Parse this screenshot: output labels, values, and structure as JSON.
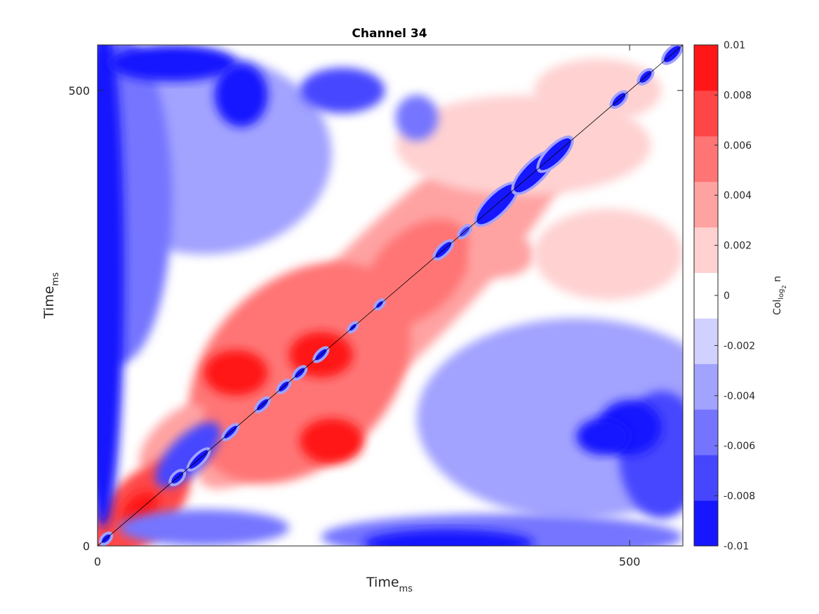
{
  "chart_data": {
    "type": "heatmap",
    "title": "Channel 34",
    "xlabel": {
      "main": "Time",
      "sub": "ms"
    },
    "ylabel": {
      "main": "Time",
      "sub": "ms"
    },
    "xlim": [
      0,
      550
    ],
    "ylim": [
      0,
      550
    ],
    "xticks": [
      {
        "value": 0,
        "label": "0"
      },
      {
        "value": 500,
        "label": "500"
      }
    ],
    "yticks": [
      {
        "value": 0,
        "label": "0"
      },
      {
        "value": 500,
        "label": "500"
      }
    ],
    "diagonal_line": true,
    "colorbar": {
      "label": {
        "main": "Col",
        "sub": "log",
        "subsub": "2",
        "tail": " n"
      },
      "clim": [
        -0.01,
        0.01
      ],
      "ticks": [
        {
          "value": 0.01,
          "label": "0.01"
        },
        {
          "value": 0.008,
          "label": "0.008"
        },
        {
          "value": 0.006,
          "label": "0.006"
        },
        {
          "value": 0.004,
          "label": "0.004"
        },
        {
          "value": 0.002,
          "label": "0.002"
        },
        {
          "value": 0,
          "label": "0"
        },
        {
          "value": -0.002,
          "label": "-0.002"
        },
        {
          "value": -0.004,
          "label": "-0.004"
        },
        {
          "value": -0.006,
          "label": "-0.006"
        },
        {
          "value": -0.008,
          "label": "-0.008"
        },
        {
          "value": -0.01,
          "label": "-0.01"
        }
      ],
      "colors": {
        "min": "#0000ff",
        "mid": "#ffffff",
        "max": "#ff0000"
      },
      "levels": 11
    },
    "regions": [
      {
        "x": 275,
        "y": 275,
        "rx": 250,
        "ry": 70,
        "rot": 45,
        "value": 0.003
      },
      {
        "x": 190,
        "y": 190,
        "rx": 120,
        "ry": 100,
        "rot": 45,
        "value": 0.0055
      },
      {
        "x": 130,
        "y": 190,
        "rx": 30,
        "ry": 25,
        "rot": 0,
        "value": 0.0095
      },
      {
        "x": 220,
        "y": 115,
        "rx": 30,
        "ry": 25,
        "rot": 0,
        "value": 0.0095
      },
      {
        "x": 210,
        "y": 210,
        "rx": 30,
        "ry": 25,
        "rot": 0,
        "value": 0.009
      },
      {
        "x": 70,
        "y": 120,
        "rx": 40,
        "ry": 20,
        "rot": 45,
        "value": 0.003
      },
      {
        "x": 300,
        "y": 300,
        "rx": 60,
        "ry": 45,
        "rot": 45,
        "value": 0.006
      },
      {
        "x": 380,
        "y": 320,
        "rx": 30,
        "ry": 25,
        "rot": 0,
        "value": 0.004
      },
      {
        "x": 40,
        "y": 40,
        "rx": 60,
        "ry": 35,
        "rot": 45,
        "value": 0.0065
      },
      {
        "x": 40,
        "y": 40,
        "rx": 20,
        "ry": 15,
        "rot": 45,
        "value": 0.0095
      },
      {
        "x": 400,
        "y": 440,
        "rx": 120,
        "ry": 55,
        "rot": 0,
        "value": 0.002
      },
      {
        "x": 480,
        "y": 320,
        "rx": 70,
        "ry": 50,
        "rot": 0,
        "value": 0.002
      },
      {
        "x": 470,
        "y": 500,
        "rx": 60,
        "ry": 35,
        "rot": 0,
        "value": 0.002
      },
      {
        "x": 450,
        "y": 140,
        "rx": 150,
        "ry": 110,
        "rot": 0,
        "value": -0.003
      },
      {
        "x": 100,
        "y": 430,
        "rx": 120,
        "ry": 110,
        "rot": 0,
        "value": -0.003
      },
      {
        "x": 20,
        "y": 380,
        "rx": 50,
        "ry": 180,
        "rot": 0,
        "value": -0.006
      },
      {
        "x": 5,
        "y": 300,
        "rx": 20,
        "ry": 280,
        "rot": 0,
        "value": -0.009
      },
      {
        "x": 380,
        "y": 10,
        "rx": 170,
        "ry": 25,
        "rot": 0,
        "value": -0.006
      },
      {
        "x": 330,
        "y": 3,
        "rx": 80,
        "ry": 15,
        "rot": 0,
        "value": -0.0095
      },
      {
        "x": 530,
        "y": 100,
        "rx": 40,
        "ry": 70,
        "rot": 0,
        "value": -0.008
      },
      {
        "x": 500,
        "y": 130,
        "rx": 30,
        "ry": 30,
        "rot": 0,
        "value": -0.009
      },
      {
        "x": 475,
        "y": 120,
        "rx": 25,
        "ry": 20,
        "rot": 0,
        "value": -0.009
      },
      {
        "x": 70,
        "y": 530,
        "rx": 60,
        "ry": 20,
        "rot": 0,
        "value": -0.009
      },
      {
        "x": 135,
        "y": 495,
        "rx": 25,
        "ry": 35,
        "rot": 0,
        "value": -0.009
      },
      {
        "x": 230,
        "y": 500,
        "rx": 40,
        "ry": 25,
        "rot": 0,
        "value": -0.007
      },
      {
        "x": 300,
        "y": 470,
        "rx": 20,
        "ry": 25,
        "rot": 0,
        "value": -0.006
      },
      {
        "x": 85,
        "y": 100,
        "rx": 40,
        "ry": 20,
        "rot": 45,
        "value": -0.008
      },
      {
        "x": 100,
        "y": 20,
        "rx": 80,
        "ry": 20,
        "rot": 0,
        "value": -0.005
      }
    ],
    "diagonal_blobs": [
      {
        "t": 8,
        "value": -0.009,
        "w": 5,
        "h": 3
      },
      {
        "t": 75,
        "value": -0.009,
        "w": 7,
        "h": 4
      },
      {
        "t": 95,
        "value": -0.009,
        "w": 12,
        "h": 4
      },
      {
        "t": 125,
        "value": -0.009,
        "w": 8,
        "h": 3
      },
      {
        "t": 155,
        "value": -0.009,
        "w": 7,
        "h": 3
      },
      {
        "t": 175,
        "value": -0.009,
        "w": 6,
        "h": 3
      },
      {
        "t": 190,
        "value": -0.009,
        "w": 6,
        "h": 3
      },
      {
        "t": 210,
        "value": -0.009,
        "w": 7,
        "h": 3
      },
      {
        "t": 240,
        "value": -0.009,
        "w": 4,
        "h": 2
      },
      {
        "t": 265,
        "value": -0.009,
        "w": 4,
        "h": 2
      },
      {
        "t": 325,
        "value": -0.009,
        "w": 10,
        "h": 4
      },
      {
        "t": 345,
        "value": -0.008,
        "w": 6,
        "h": 3
      },
      {
        "t": 375,
        "value": -0.009,
        "w": 25,
        "h": 10
      },
      {
        "t": 410,
        "value": -0.009,
        "w": 25,
        "h": 10
      },
      {
        "t": 430,
        "value": -0.009,
        "w": 20,
        "h": 8
      },
      {
        "t": 490,
        "value": -0.009,
        "w": 8,
        "h": 4
      },
      {
        "t": 515,
        "value": -0.009,
        "w": 7,
        "h": 4
      },
      {
        "t": 540,
        "value": -0.009,
        "w": 10,
        "h": 5
      }
    ]
  }
}
